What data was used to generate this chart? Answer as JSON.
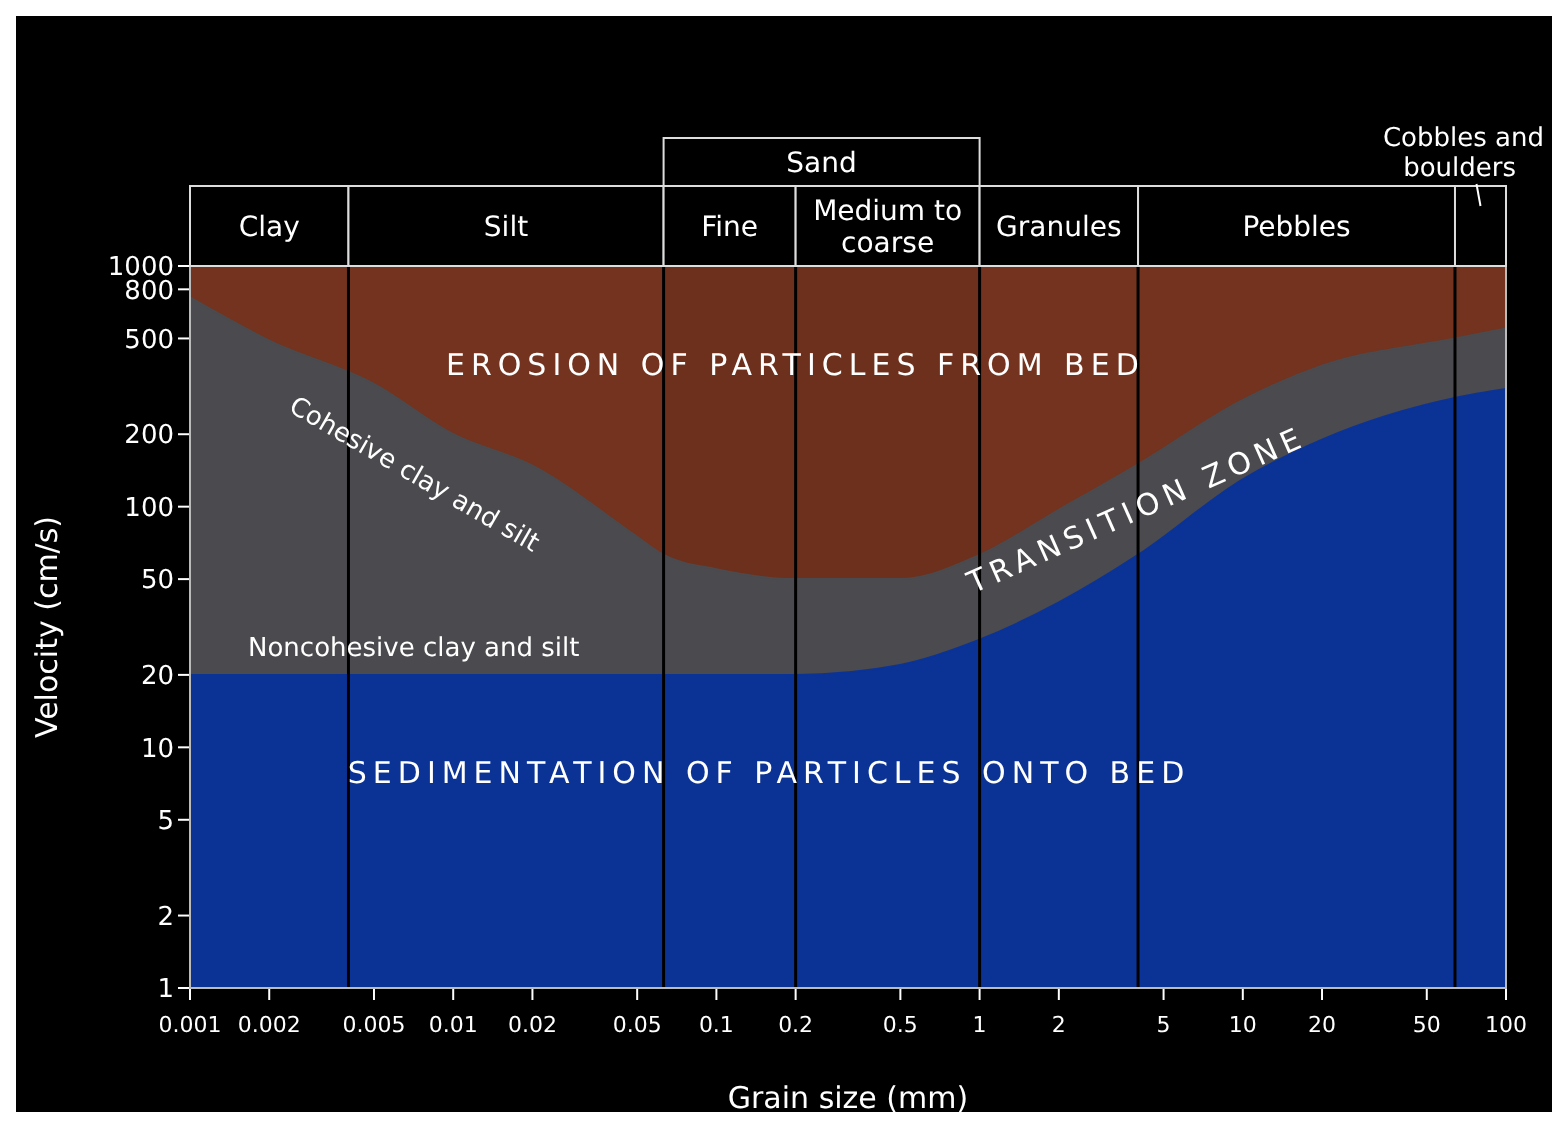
{
  "chart_data": {
    "type": "area",
    "xlabel": "Grain size (mm)",
    "ylabel": "Velocity (cm/s)",
    "log": "xy",
    "xlim": [
      0.001,
      100
    ],
    "ylim": [
      1,
      1000
    ],
    "xticks": [
      0.001,
      0.002,
      0.005,
      0.01,
      0.02,
      0.05,
      0.1,
      0.2,
      0.5,
      1,
      2,
      5,
      10,
      20,
      50,
      100
    ],
    "yticks": [
      1,
      2,
      5,
      10,
      20,
      50,
      100,
      200,
      500,
      800,
      1000
    ],
    "series": [
      {
        "color": "#4b4a4e",
        "x": [
          0.001,
          0.002,
          0.005,
          0.01,
          0.02,
          0.05,
          0.063,
          0.1,
          0.2,
          0.5,
          1,
          2,
          4,
          10,
          20,
          64,
          100
        ],
        "values": [
          740,
          490,
          324,
          200,
          148,
          75,
          63,
          55,
          50,
          50,
          63,
          97,
          150,
          278,
          385,
          500,
          550
        ]
      },
      {
        "color": "#0b3396",
        "x": [
          0.001,
          0.01,
          0.1,
          0.2,
          0.5,
          1,
          2,
          4,
          10,
          20,
          64,
          100
        ],
        "values": [
          20,
          20,
          20,
          20,
          22,
          28,
          40,
          63,
          130,
          190,
          283,
          308
        ]
      }
    ],
    "bands": [
      {
        "axis": "y",
        "from": 1,
        "to": 1000,
        "color": "#7a3620"
      },
      {
        "axis": "x",
        "from": 0.001,
        "to": 0.004,
        "label": "Clay",
        "color": "#000000"
      },
      {
        "axis": "x",
        "from": 0.004,
        "to": 0.063,
        "label": "Silt",
        "color": "#000000"
      },
      {
        "axis": "x",
        "from": 0.063,
        "to": 0.2,
        "label": "Fine",
        "color": "#000000"
      },
      {
        "axis": "x",
        "from": 0.2,
        "to": 1,
        "label": "Medium to coarse",
        "color": "#000000"
      },
      {
        "axis": "x",
        "from": 1,
        "to": 4,
        "label": "Granules",
        "color": "#000000"
      },
      {
        "axis": "x",
        "from": 4,
        "to": 64,
        "label": "Pebbles",
        "color": "#000000"
      },
      {
        "axis": "x",
        "from": 64,
        "to": 100,
        "label": "Cobbles and boulders",
        "color": "#000000"
      },
      {
        "axis": "x",
        "from": 0.063,
        "to": 1,
        "label": "Sand",
        "color": "#000000"
      }
    ],
    "annotations": [
      "EROSION OF PARTICLES FROM BED",
      "Cohesive clay and silt",
      "Noncohesive clay and silt",
      "TRANSITION ZONE",
      "SEDIMENTATION OF PARTICLES ONTO BED"
    ],
    "ref_lines": [
      {
        "axis": "x",
        "value": 0.004,
        "color": "#000000"
      },
      {
        "axis": "x",
        "value": 0.063,
        "color": "#000000"
      },
      {
        "axis": "x",
        "value": 0.2,
        "color": "#000000"
      },
      {
        "axis": "x",
        "value": 1,
        "color": "#000000"
      },
      {
        "axis": "x",
        "value": 4,
        "color": "#000000"
      },
      {
        "axis": "x",
        "value": 64,
        "color": "#000000"
      }
    ],
    "legend": false
  }
}
